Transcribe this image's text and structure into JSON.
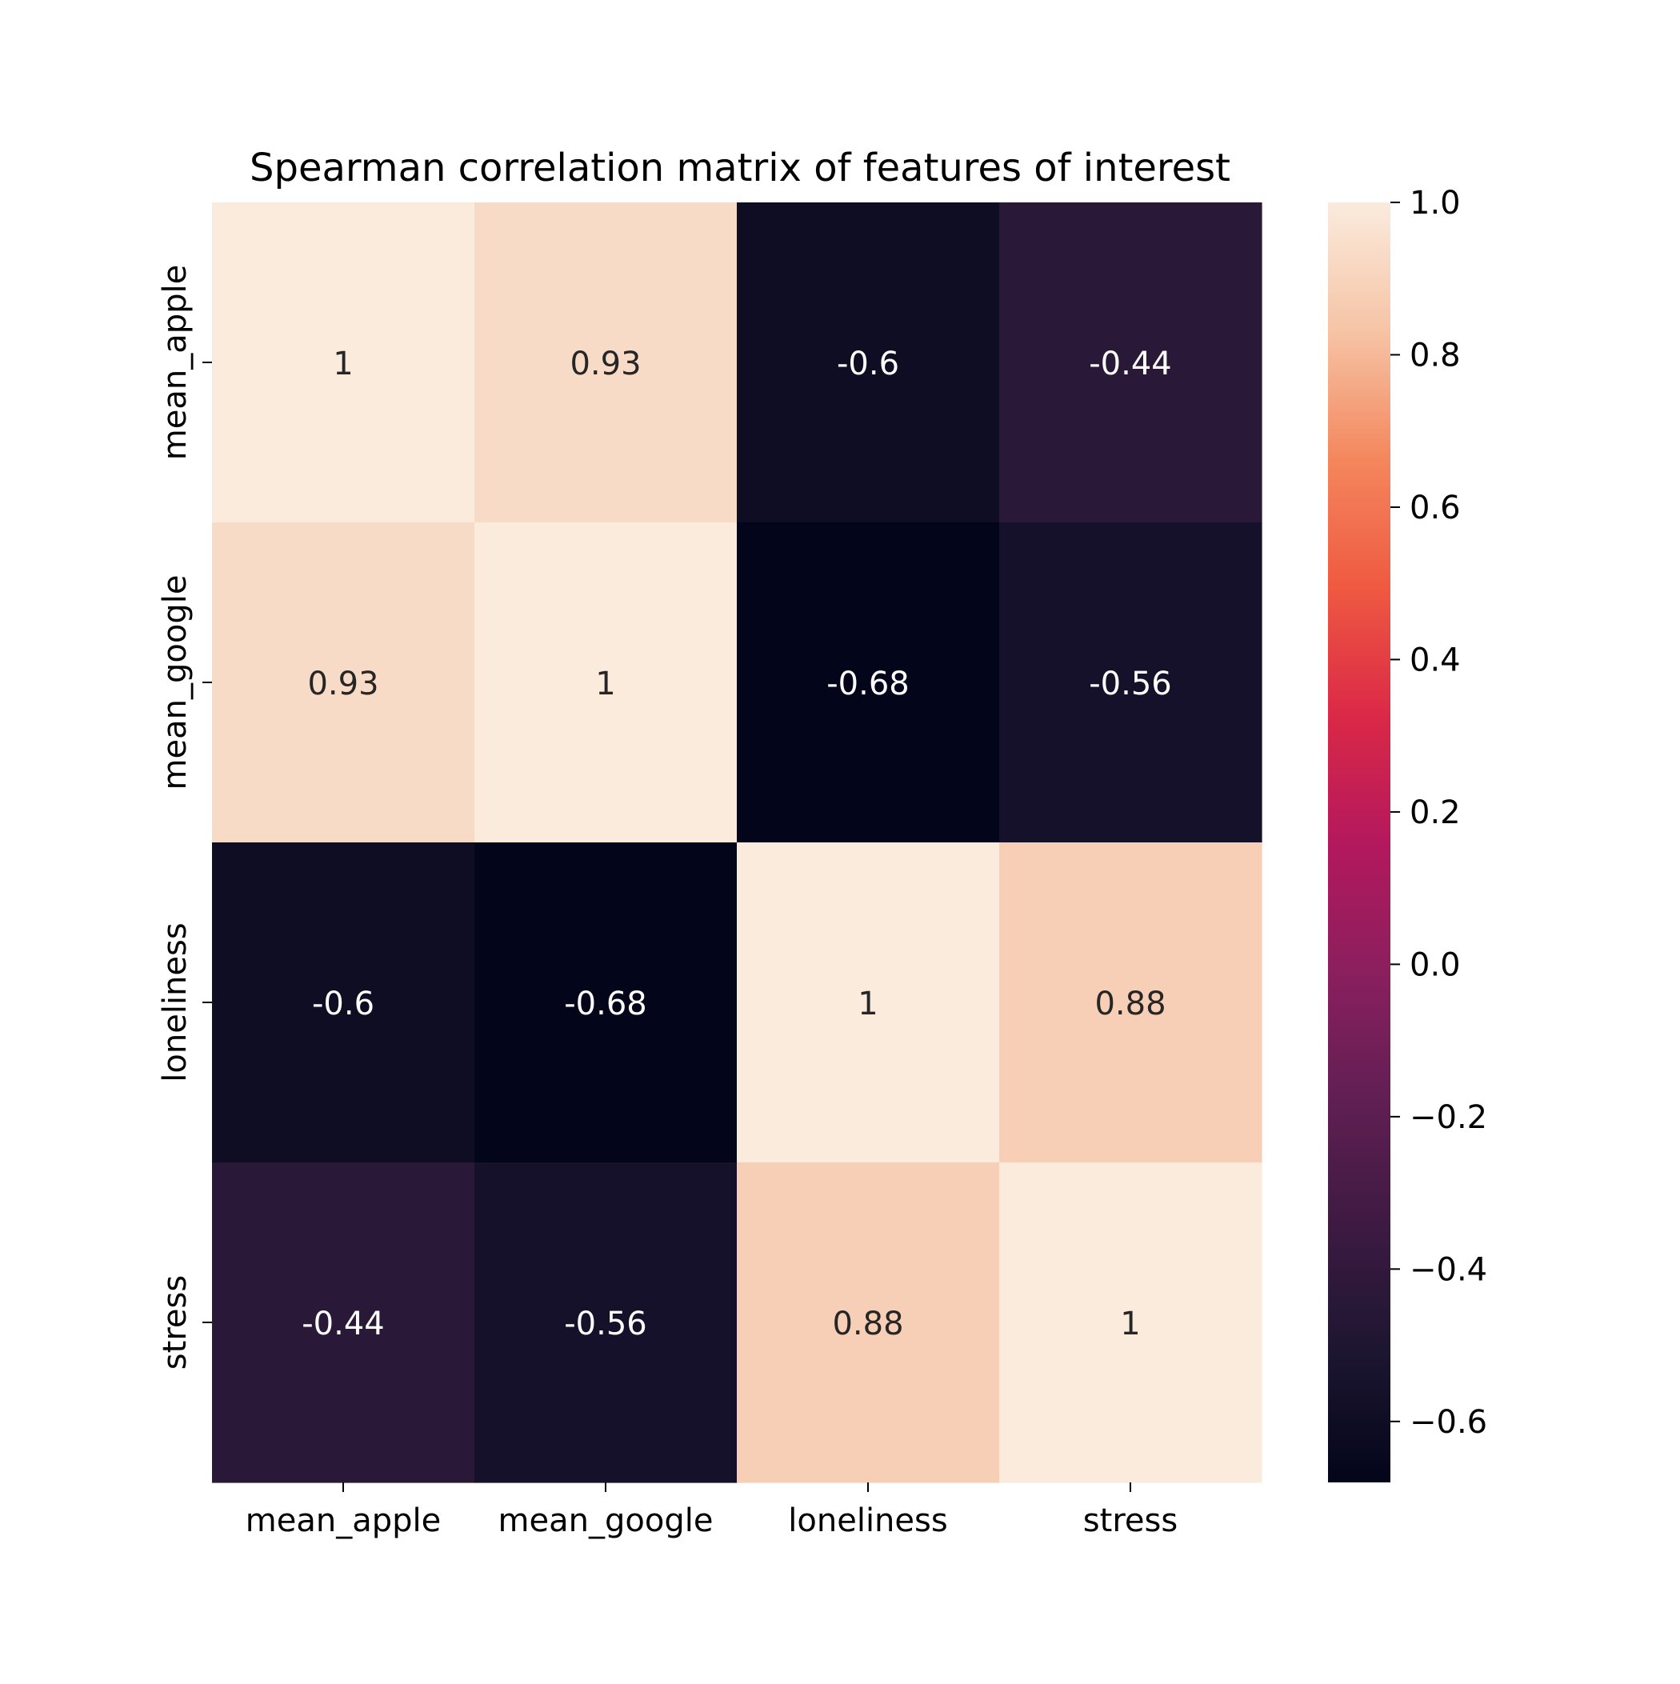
{
  "chart_data": {
    "type": "heatmap",
    "title": "Spearman correlation matrix of features of interest",
    "x_labels": [
      "mean_apple",
      "mean_google",
      "loneliness",
      "stress"
    ],
    "y_labels": [
      "mean_apple",
      "mean_google",
      "loneliness",
      "stress"
    ],
    "matrix": [
      [
        1,
        0.93,
        -0.6,
        -0.44
      ],
      [
        0.93,
        1,
        -0.68,
        -0.56
      ],
      [
        -0.6,
        -0.68,
        1,
        0.88
      ],
      [
        -0.44,
        -0.56,
        0.88,
        1
      ]
    ],
    "cell_labels": [
      [
        "1",
        "0.93",
        "-0.6",
        "-0.44"
      ],
      [
        "0.93",
        "1",
        "-0.68",
        "-0.56"
      ],
      [
        "-0.6",
        "-0.68",
        "1",
        "0.88"
      ],
      [
        "-0.44",
        "-0.56",
        "0.88",
        "1"
      ]
    ],
    "colormap": "rocket",
    "color_range": [
      -0.68,
      1.0
    ],
    "colorbar_ticks": [
      1.0,
      0.8,
      0.6,
      0.4,
      0.2,
      0.0,
      -0.2,
      -0.4,
      -0.6
    ],
    "colorbar_tick_labels": [
      "1.0",
      "0.8",
      "0.6",
      "0.4",
      "0.2",
      "0.0",
      "−0.2",
      "−0.4",
      "−0.6"
    ],
    "colormap_stops": [
      {
        "v": 0.0,
        "c": "#03051a"
      },
      {
        "v": 0.1,
        "c": "#1c1630"
      },
      {
        "v": 0.2,
        "c": "#3d1a42"
      },
      {
        "v": 0.3,
        "c": "#611f53"
      },
      {
        "v": 0.4,
        "c": "#8b1f5e"
      },
      {
        "v": 0.5,
        "c": "#b4185d"
      },
      {
        "v": 0.6,
        "c": "#db2947"
      },
      {
        "v": 0.7,
        "c": "#ef5a41"
      },
      {
        "v": 0.8,
        "c": "#f4875e"
      },
      {
        "v": 0.9,
        "c": "#f6c4a6"
      },
      {
        "v": 1.0,
        "c": "#faebdd"
      }
    ]
  }
}
